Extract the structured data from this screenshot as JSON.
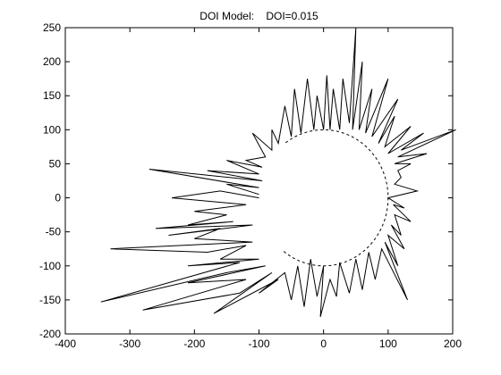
{
  "chart_data": {
    "type": "line",
    "title": "DOI Model:    DOI=0.015",
    "xlabel": "",
    "ylabel": "",
    "xlim": [
      -400,
      200
    ],
    "ylim": [
      -200,
      250
    ],
    "x_ticks": [
      -400,
      -300,
      -200,
      -100,
      0,
      100,
      200
    ],
    "y_ticks": [
      -200,
      -150,
      -100,
      -50,
      0,
      50,
      100,
      150,
      200,
      250
    ],
    "grid": false,
    "legend": "none",
    "colors": {
      "line": "#000000",
      "axes": "#000000",
      "background": "#ffffff"
    },
    "series": [
      {
        "style": "dashed",
        "shape": "circle",
        "center": [
          0,
          0
        ],
        "radius": 100,
        "visible_angle_range_deg": [
          -128,
          128
        ]
      },
      {
        "style": "solid",
        "points": [
          [
            -100,
            0
          ],
          [
            -160,
            10
          ],
          [
            -235,
            0
          ],
          [
            -120,
            -10
          ],
          [
            -200,
            -20
          ],
          [
            -150,
            -25
          ],
          [
            -210,
            -40
          ],
          [
            -140,
            -35
          ],
          [
            -260,
            -45
          ],
          [
            -110,
            -40
          ],
          [
            -240,
            -55
          ],
          [
            -160,
            -45
          ],
          [
            -200,
            -60
          ],
          [
            -110,
            -65
          ],
          [
            -330,
            -75
          ],
          [
            -180,
            -80
          ],
          [
            -120,
            -70
          ],
          [
            -160,
            -90
          ],
          [
            -100,
            -90
          ],
          [
            -210,
            -100
          ],
          [
            -130,
            -95
          ],
          [
            -345,
            -153
          ],
          [
            -150,
            -110
          ],
          [
            -90,
            -100
          ],
          [
            -210,
            -125
          ],
          [
            -120,
            -120
          ],
          [
            -280,
            -165
          ],
          [
            -130,
            -140
          ],
          [
            -80,
            -110
          ],
          [
            -170,
            -170
          ],
          [
            -70,
            -120
          ],
          [
            -100,
            -140
          ],
          [
            -60,
            -110
          ],
          [
            -50,
            -150
          ],
          [
            -40,
            -100
          ],
          [
            -30,
            -160
          ],
          [
            -20,
            -90
          ],
          [
            -10,
            -145
          ],
          [
            0,
            -100
          ],
          [
            -5,
            -175
          ],
          [
            10,
            -120
          ],
          [
            20,
            -145
          ],
          [
            25,
            -95
          ],
          [
            40,
            -140
          ],
          [
            50,
            -90
          ],
          [
            60,
            -135
          ],
          [
            70,
            -80
          ],
          [
            80,
            -120
          ],
          [
            90,
            -75
          ],
          [
            130,
            -150
          ],
          [
            95,
            -65
          ],
          [
            115,
            -100
          ],
          [
            100,
            -55
          ],
          [
            125,
            -75
          ],
          [
            105,
            -40
          ],
          [
            120,
            -55
          ],
          [
            110,
            -25
          ],
          [
            135,
            -35
          ],
          [
            108,
            -10
          ],
          [
            125,
            -15
          ],
          [
            100,
            0
          ],
          [
            145,
            10
          ],
          [
            110,
            20
          ],
          [
            120,
            30
          ],
          [
            115,
            40
          ],
          [
            135,
            50
          ],
          [
            110,
            50
          ],
          [
            160,
            65
          ],
          [
            115,
            60
          ],
          [
            205,
            100
          ],
          [
            120,
            70
          ],
          [
            155,
            95
          ],
          [
            100,
            65
          ],
          [
            135,
            105
          ],
          [
            95,
            75
          ],
          [
            110,
            120
          ],
          [
            85,
            80
          ],
          [
            115,
            145
          ],
          [
            75,
            90
          ],
          [
            100,
            175
          ],
          [
            65,
            95
          ],
          [
            75,
            160
          ],
          [
            55,
            100
          ],
          [
            60,
            200
          ],
          [
            45,
            100
          ],
          [
            50,
            250
          ],
          [
            40,
            110
          ],
          [
            30,
            175
          ],
          [
            25,
            100
          ],
          [
            15,
            160
          ],
          [
            10,
            100
          ],
          [
            5,
            180
          ],
          [
            0,
            100
          ],
          [
            -10,
            150
          ],
          [
            -15,
            100
          ],
          [
            -25,
            175
          ],
          [
            -35,
            95
          ],
          [
            -45,
            160
          ],
          [
            -50,
            90
          ],
          [
            -60,
            135
          ],
          [
            -70,
            80
          ],
          [
            -80,
            100
          ],
          [
            -80,
            70
          ],
          [
            -110,
            95
          ],
          [
            -90,
            60
          ],
          [
            -120,
            55
          ],
          [
            -95,
            45
          ],
          [
            -150,
            55
          ],
          [
            -100,
            35
          ],
          [
            -180,
            40
          ],
          [
            -95,
            25
          ],
          [
            -270,
            42
          ],
          [
            -100,
            15
          ],
          [
            -150,
            20
          ],
          [
            -100,
            5
          ]
        ]
      }
    ]
  }
}
